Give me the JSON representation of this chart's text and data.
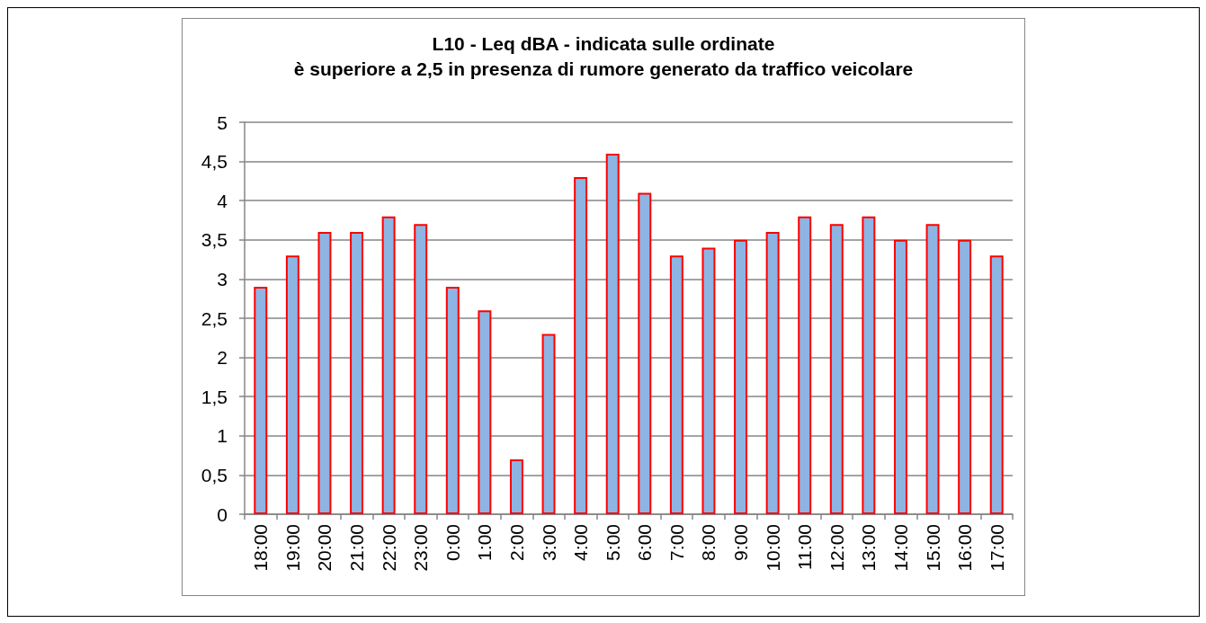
{
  "chart_data": {
    "type": "bar",
    "title": "L10 - Leq dBA - indicata sulle ordinate\nè superiore a 2,5 in presenza di rumore generato da traffico veicolare",
    "categories": [
      "18:00",
      "19:00",
      "20:00",
      "21:00",
      "22:00",
      "23:00",
      "0:00",
      "1:00",
      "2:00",
      "3:00",
      "4:00",
      "5:00",
      "6:00",
      "7:00",
      "8:00",
      "9:00",
      "10:00",
      "11:00",
      "12:00",
      "13:00",
      "14:00",
      "15:00",
      "16:00",
      "17:00"
    ],
    "values": [
      2.9,
      3.3,
      3.6,
      3.6,
      3.8,
      3.7,
      2.9,
      2.6,
      0.7,
      2.3,
      4.3,
      4.6,
      4.1,
      3.3,
      3.4,
      3.5,
      3.6,
      3.8,
      3.7,
      3.8,
      3.5,
      3.7,
      3.5,
      3.3
    ],
    "color": "#8eb4e3",
    "ylim": [
      0,
      5
    ],
    "yticks": [
      0,
      {
        "value": 0.5,
        "label": "0,5"
      },
      1,
      {
        "value": 1.5,
        "label": "1,5"
      },
      2,
      {
        "value": 2.5,
        "label": "2,5"
      },
      3,
      {
        "value": 3.5,
        "label": "3,5"
      },
      4,
      {
        "value": 4.5,
        "label": "4,5"
      },
      5
    ],
    "grid": "y"
  }
}
